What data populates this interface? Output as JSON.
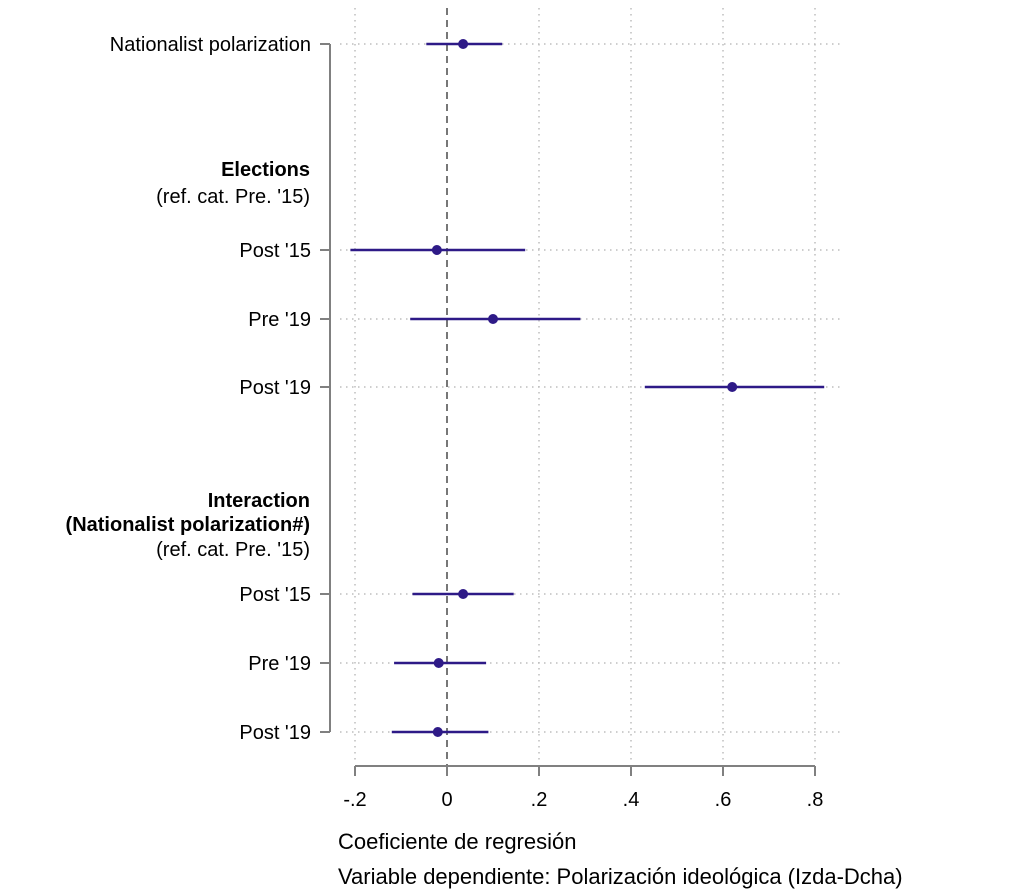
{
  "chart_data": {
    "type": "coefficient-plot",
    "title": "",
    "xlabel": "Coeficiente de regresión",
    "note": "Variable dependiente: Polarización ideológica (Izda-Dcha)",
    "xlim": [
      -0.2,
      0.8
    ],
    "x_ticks": [
      {
        "value": -0.2,
        "label": "-.2"
      },
      {
        "value": 0,
        "label": "0"
      },
      {
        "value": 0.2,
        "label": ".2"
      },
      {
        "value": 0.4,
        "label": ".4"
      },
      {
        "value": 0.6,
        "label": ".6"
      },
      {
        "value": 0.8,
        "label": ".8"
      }
    ],
    "reference_line": 0,
    "grid": true,
    "marker_color": "#2E1A87",
    "headers": [
      {
        "lines": [
          {
            "text": "Elections",
            "bold": true
          },
          {
            "text": "(ref. cat. Pre. '15)",
            "bold": false
          }
        ],
        "before_row": 1
      },
      {
        "lines": [
          {
            "text": "Interaction",
            "bold": true
          },
          {
            "text": "(Nationalist polarization#)",
            "bold": true
          },
          {
            "text": "(ref. cat. Pre. '15)",
            "bold": false
          }
        ],
        "before_row": 4
      }
    ],
    "rows": [
      {
        "label": "Nationalist polarization",
        "estimate": 0.035,
        "ci_low": -0.045,
        "ci_high": 0.12
      },
      {
        "label": "Post '15",
        "estimate": -0.022,
        "ci_low": -0.21,
        "ci_high": 0.17
      },
      {
        "label": "Pre '19",
        "estimate": 0.1,
        "ci_low": -0.08,
        "ci_high": 0.29
      },
      {
        "label": "Post '19",
        "estimate": 0.62,
        "ci_low": 0.43,
        "ci_high": 0.82
      },
      {
        "label": "Post '15",
        "estimate": 0.035,
        "ci_low": -0.075,
        "ci_high": 0.145
      },
      {
        "label": "Pre '19",
        "estimate": -0.018,
        "ci_low": -0.115,
        "ci_high": 0.085
      },
      {
        "label": "Post '19",
        "estimate": -0.02,
        "ci_low": -0.12,
        "ci_high": 0.09
      }
    ]
  }
}
